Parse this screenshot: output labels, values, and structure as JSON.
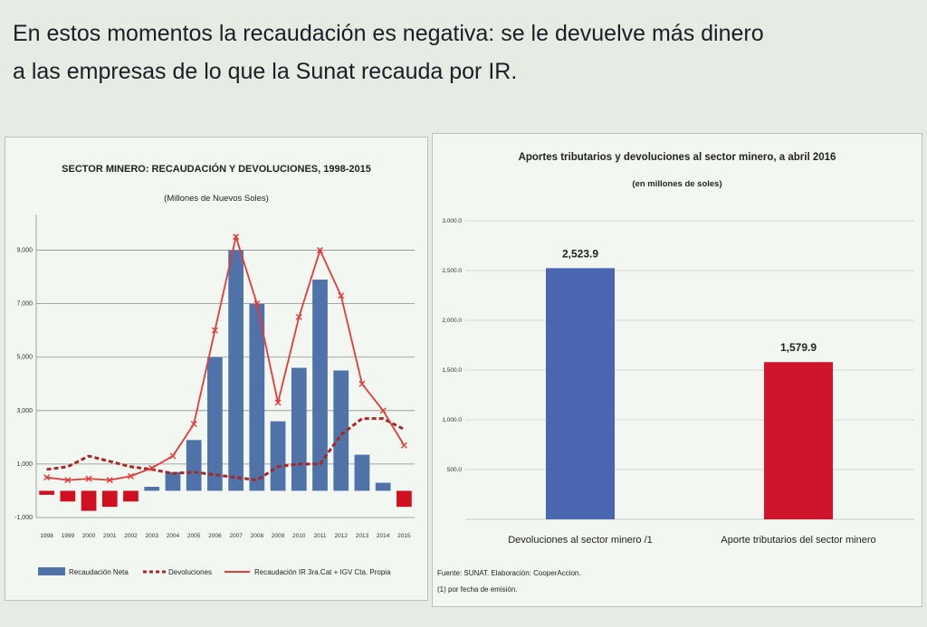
{
  "headline": {
    "line1": "En estos momentos la recaudación es negativa: se le devuelve más dinero",
    "line2": "a las empresas de lo que la Sunat recauda por IR."
  },
  "colors": {
    "neta": "#4f72a8",
    "devoluciones": "#a82828",
    "ir": "#e23b3b",
    "aporte": "#d0142c",
    "devol_bar": "#4a66b0",
    "negative_bar": "#d01020"
  },
  "chart_data": [
    {
      "type": "bar",
      "title": "SECTOR MINERO: RECAUDACIÓN Y DEVOLUCIONES, 1998-2015",
      "subtitle": "(Millones de Nuevos Soles)",
      "categories": [
        "1998",
        "1999",
        "2000",
        "2001",
        "2002",
        "2003",
        "2004",
        "2005",
        "2006",
        "2007",
        "2008",
        "2009",
        "2010",
        "2011",
        "2012",
        "2013",
        "2014",
        "2015"
      ],
      "ylim": [
        -1000,
        10000
      ],
      "yticks": [
        -1000,
        1000,
        3000,
        5000,
        7000,
        9000
      ],
      "ytick_labels": [
        "-1,000",
        "1,000",
        "3,000",
        "5,000",
        "7,000",
        "9,000"
      ],
      "grid": true,
      "legend_position": "bottom",
      "series": [
        {
          "name": "Recaudación Neta",
          "kind": "bar",
          "values": [
            -150,
            -400,
            -750,
            -600,
            -400,
            150,
            700,
            1900,
            5000,
            9000,
            7000,
            2600,
            4600,
            7900,
            4500,
            1350,
            300,
            -600
          ]
        },
        {
          "name": "Devoluciones",
          "kind": "line-dashed",
          "values": [
            800,
            900,
            1300,
            1100,
            900,
            800,
            650,
            700,
            600,
            500,
            400,
            900,
            1000,
            1000,
            2100,
            2700,
            2700,
            2300
          ]
        },
        {
          "name": "Recaudación IR 3ra.Cat + IGV Cta. Propia",
          "kind": "line-marker",
          "values": [
            500,
            400,
            450,
            400,
            550,
            850,
            1300,
            2500,
            6000,
            9500,
            7000,
            3300,
            6500,
            9000,
            7300,
            4000,
            3000,
            1700
          ]
        }
      ]
    },
    {
      "type": "bar",
      "title": "Aportes tributarios y devoluciones al sector minero, a abril 2016",
      "subtitle": "(en millones de soles)",
      "categories": [
        "Devoluciones al sector minero /1",
        "Aporte tributarios del sector minero"
      ],
      "values": [
        2523.9,
        1579.9
      ],
      "value_labels": [
        "2,523.9",
        "1,579.9"
      ],
      "ylim": [
        0,
        3000
      ],
      "yticks": [
        500,
        1000,
        1500,
        2000,
        2500,
        3000
      ],
      "ytick_labels": [
        "500.0",
        "1,000.0",
        "1,500.0",
        "2,000.0",
        "2,500.0",
        "3,000.0"
      ],
      "grid": true,
      "notes": [
        "Fuente: SUNAT. Elaboración: CooperAccion.",
        "(1) por fecha de emisión."
      ]
    }
  ]
}
